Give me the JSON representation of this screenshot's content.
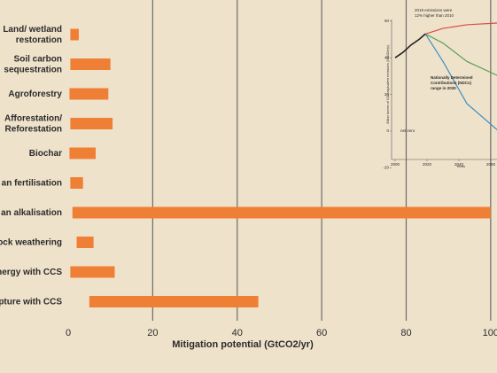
{
  "chart_data": [
    {
      "type": "range-bar",
      "color": "#f07f36",
      "categories": [
        [
          "Land/ wetland",
          "restoration"
        ],
        [
          "Soil carbon",
          "sequestration"
        ],
        [
          "Agroforestry"
        ],
        [
          "Afforestation/",
          "Reforestation"
        ],
        [
          "Biochar"
        ],
        [
          "an fertilisation"
        ],
        [
          "an alkalisation"
        ],
        [
          "ock weathering"
        ],
        [
          "nergy with CCS"
        ],
        [
          "apture with CCS"
        ]
      ],
      "values": [
        [
          0.5,
          2.5
        ],
        [
          0.5,
          10
        ],
        [
          0.3,
          9.5
        ],
        [
          0.5,
          10.5
        ],
        [
          0.3,
          6.5
        ],
        [
          0.5,
          3.5
        ],
        [
          1,
          100
        ],
        [
          2,
          6
        ],
        [
          0.5,
          11
        ],
        [
          5,
          45
        ]
      ],
      "xlim": [
        0,
        101.5
      ],
      "xticks": [
        0,
        20,
        40,
        60,
        80,
        100
      ],
      "grid": true,
      "xlabel": "Mitigation potential (GtCO2/yr)"
    },
    {
      "type": "line",
      "ylabel": "Billion tonnes of CO2-equivalent emissions (GtCO2e/yr)",
      "xlabel": "Years",
      "xlim": [
        1997,
        2065
      ],
      "xticks": [
        2000,
        2020,
        2040,
        2060
      ],
      "ylim": [
        -25,
        65
      ],
      "yticks": [
        60,
        40,
        20,
        0,
        -20
      ],
      "annotations": [
        "2019 emissions were",
        "12% higher than 2010",
        "Nationally Determined",
        "Contributions (NDCs)",
        "range in 2030",
        "net zero"
      ],
      "series": [
        {
          "color": "#d94a4a",
          "x": [
            2019,
            2030,
            2045,
            2065
          ],
          "values": [
            53,
            56,
            58,
            59
          ]
        },
        {
          "color": "#5a9e5a",
          "x": [
            2019,
            2030,
            2045,
            2065
          ],
          "values": [
            53,
            48,
            38,
            30
          ]
        },
        {
          "color": "#3c8fc0",
          "x": [
            2019,
            2030,
            2045,
            2065
          ],
          "values": [
            53,
            38,
            15,
            0
          ]
        },
        {
          "color": "#222222",
          "x": [
            2000,
            2005,
            2010,
            2015,
            2019
          ],
          "values": [
            40,
            43,
            47,
            50,
            53
          ]
        }
      ]
    }
  ]
}
